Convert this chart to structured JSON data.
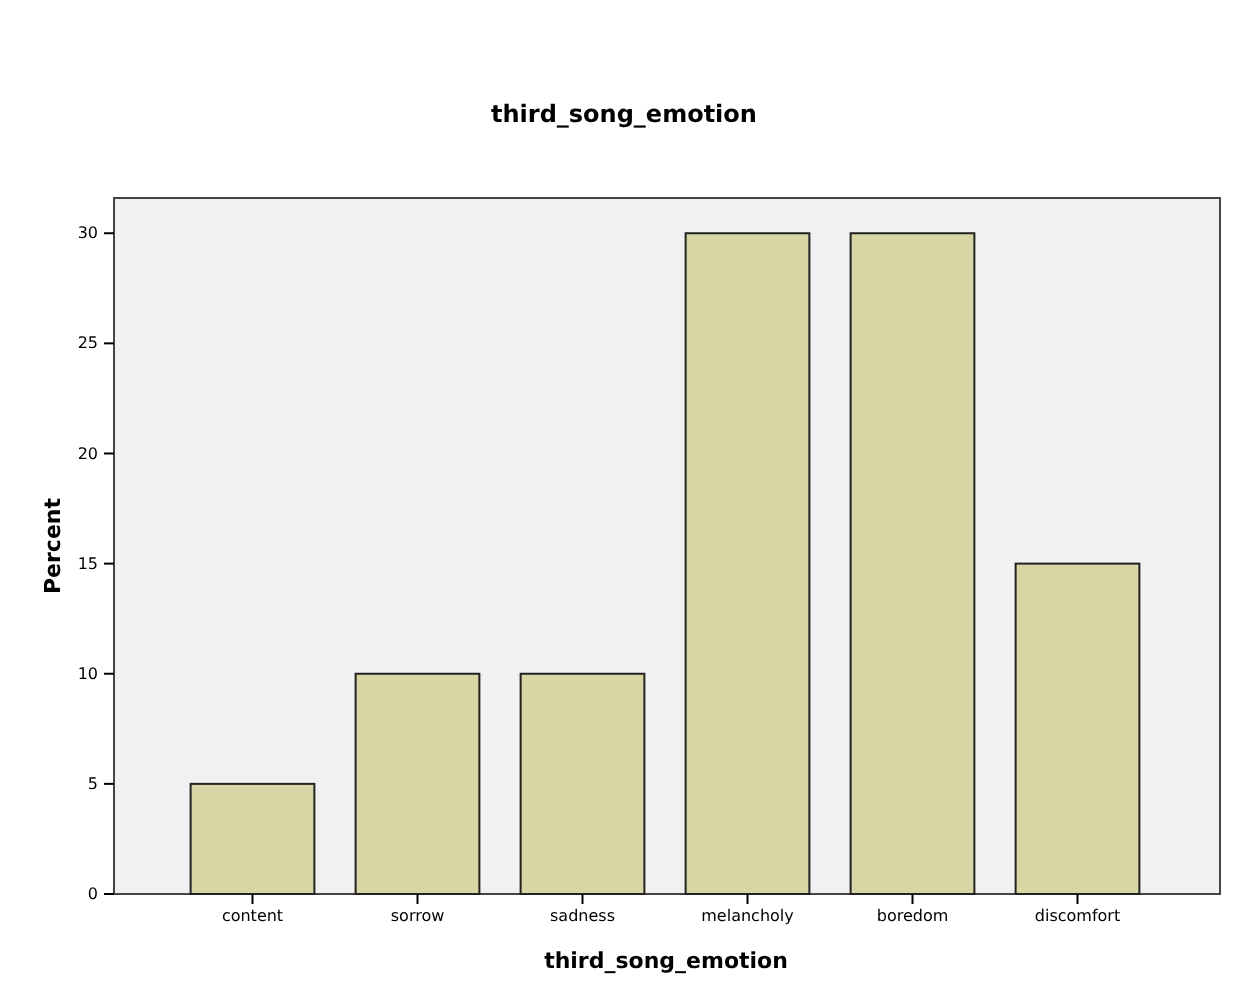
{
  "chart_data": {
    "type": "bar",
    "title": "third_song_emotion",
    "xlabel": "third_song_emotion",
    "ylabel": "Percent",
    "categories": [
      "content",
      "sorrow",
      "sadness",
      "melancholy",
      "boredom",
      "discomfort"
    ],
    "values": [
      5,
      10,
      10,
      30,
      30,
      15
    ],
    "color": "#d9d6a5",
    "ylim": [
      0,
      31.6
    ],
    "yticks": [
      0,
      5,
      10,
      15,
      20,
      25,
      30
    ],
    "grid": false
  }
}
